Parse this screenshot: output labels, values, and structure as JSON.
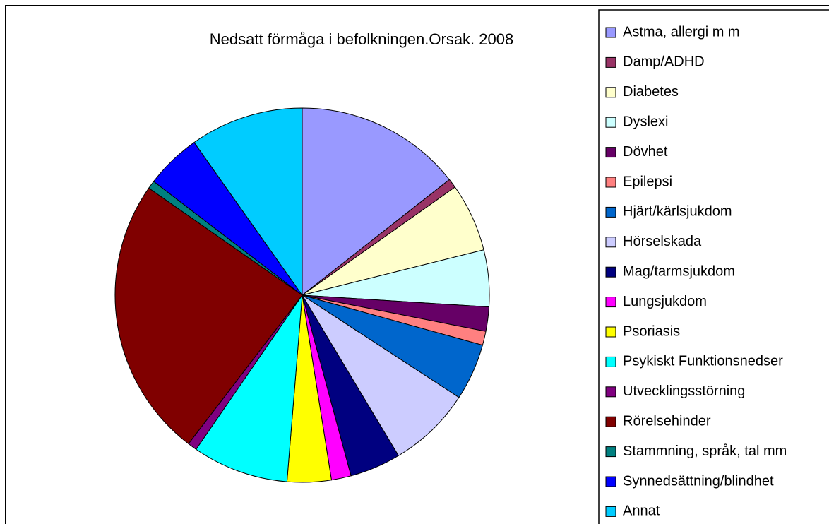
{
  "chart_data": {
    "type": "pie",
    "title": "Nedsatt förmåga i befolkningen.Orsak. 2008",
    "categories": [
      "Astma, allergi m m",
      "Damp/ADHD",
      "Diabetes",
      "Dyslexi",
      "Dövhet",
      "Epilepsi",
      "Hjärt/kärlsjukdom",
      "Hörselskada",
      "Mag/tarmsjukdom",
      "Lungsjukdom",
      "Psoriasis",
      "Psykiskt Funktionsnedser",
      "Utvecklingsstörning",
      "Rörelsehinder",
      "Stammning, språk, tal mm",
      "Synnedsättning/blindhet",
      "Annat"
    ],
    "values": [
      14.4,
      0.8,
      5.9,
      4.9,
      2.1,
      1.2,
      4.9,
      7.2,
      4.4,
      1.7,
      3.8,
      8.3,
      0.8,
      24.3,
      0.7,
      4.8,
      9.8
    ],
    "colors": [
      "#9999FF",
      "#993366",
      "#FFFFCC",
      "#CCFFFF",
      "#660066",
      "#FF8080",
      "#0066CC",
      "#CCCCFF",
      "#000080",
      "#FF00FF",
      "#FFFF00",
      "#00FFFF",
      "#800080",
      "#800000",
      "#008080",
      "#0000FF",
      "#00CCFF"
    ],
    "legend": "right"
  }
}
